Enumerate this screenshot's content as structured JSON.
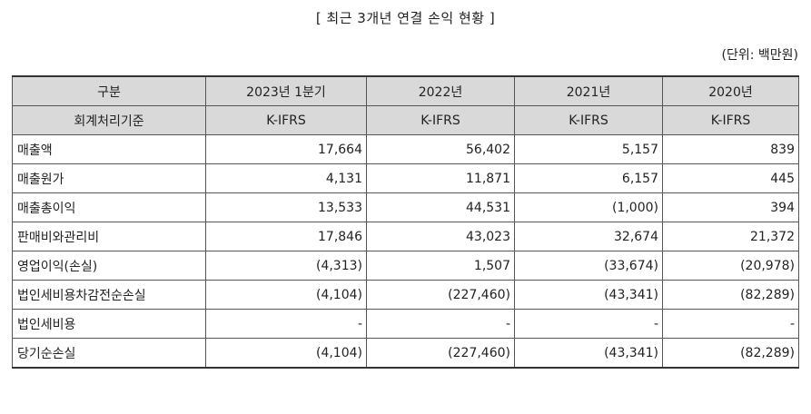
{
  "title": "[ 최근 3개년 연결 손익 현황 ]",
  "unit": "(단위: 백만원)",
  "header": {
    "row1": [
      "구분",
      "2023년 1분기",
      "2022년",
      "2021년",
      "2020년"
    ],
    "row2": [
      "회계처리기준",
      "K-IFRS",
      "K-IFRS",
      "K-IFRS",
      "K-IFRS"
    ]
  },
  "rows": [
    {
      "label": "매출액",
      "values": [
        "17,664",
        "56,402",
        "5,157",
        "839"
      ]
    },
    {
      "label": "매출원가",
      "values": [
        "4,131",
        "11,871",
        "6,157",
        "445"
      ]
    },
    {
      "label": "매출총이익",
      "values": [
        "13,533",
        "44,531",
        "(1,000)",
        "394"
      ]
    },
    {
      "label": "판매비와관리비",
      "values": [
        "17,846",
        "43,023",
        "32,674",
        "21,372"
      ]
    },
    {
      "label": "영업이익(손실)",
      "values": [
        "(4,313)",
        "1,507",
        "(33,674)",
        "(20,978)"
      ]
    },
    {
      "label": "법인세비용차감전순손실",
      "values": [
        "(4,104)",
        "(227,460)",
        "(43,341)",
        "(82,289)"
      ]
    },
    {
      "label": "법인세비용",
      "values": [
        "-",
        "-",
        "-",
        "-"
      ]
    },
    {
      "label": "당기순손실",
      "values": [
        "(4,104)",
        "(227,460)",
        "(43,341)",
        "(82,289)"
      ]
    }
  ]
}
